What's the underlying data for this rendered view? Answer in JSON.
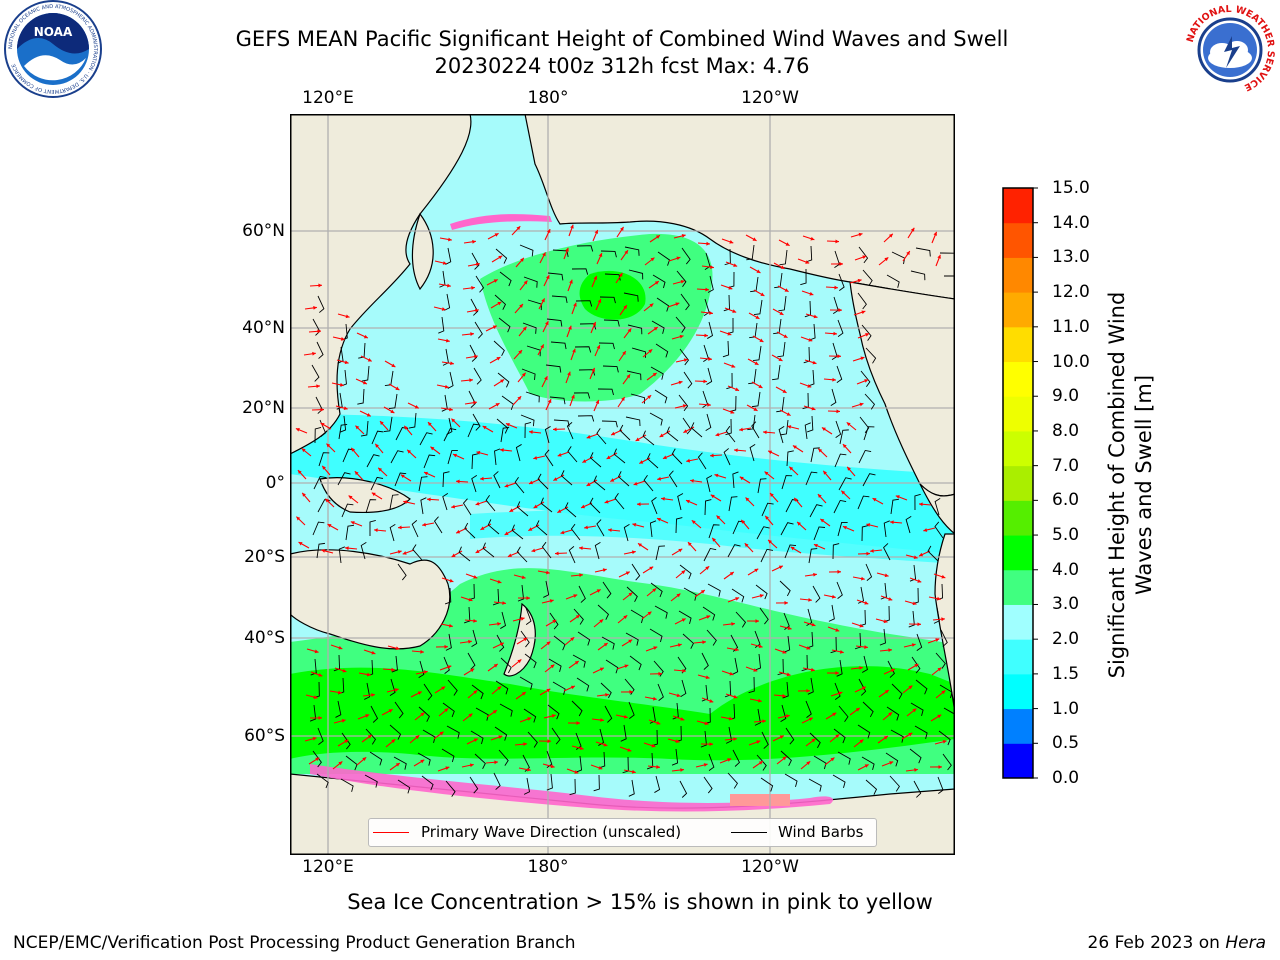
{
  "header": {
    "title": "GEFS MEAN Pacific Significant Height of Combined Wind Waves and Swell",
    "subtitle": "20230224 t00z 312h fcst   Max: 4.76"
  },
  "logos": {
    "noaa": {
      "text": "NOAA",
      "ring_text": "NATIONAL OCEANIC AND ATMOSPHERIC ADMINISTRATION · U.S. DEPARTMENT OF COMMERCE"
    },
    "nws": {
      "ring_text": "NATIONAL WEATHER SERVICE"
    }
  },
  "map": {
    "lon_labels": [
      "120°E",
      "180°",
      "120°W"
    ],
    "lat_labels": [
      "60°N",
      "40°N",
      "20°N",
      "0°",
      "20°S",
      "40°S",
      "60°S"
    ],
    "legend": {
      "wave_direction": "Primary Wave Direction (unscaled)",
      "wind_barbs": "Wind Barbs"
    },
    "colors": {
      "land": "#efecdc",
      "wave_arrow": "#ff0000",
      "barb": "#000000",
      "grid": "#b0b0b0"
    }
  },
  "colorbar": {
    "label": "Significant Height of Combined Wind Waves and Swell [m]",
    "ticks": [
      "0.0",
      "0.5",
      "1.0",
      "1.5",
      "2.0",
      "3.0",
      "4.0",
      "5.0",
      "6.0",
      "7.0",
      "8.0",
      "9.0",
      "10.0",
      "11.0",
      "12.0",
      "13.0",
      "14.0",
      "15.0"
    ],
    "colors": [
      "#0000ff",
      "#0080ff",
      "#00ffff",
      "#40ffff",
      "#a0ffff",
      "#40ff80",
      "#00ff00",
      "#55ee00",
      "#aaee00",
      "#ccff00",
      "#eeff00",
      "#ffff00",
      "#ffdd00",
      "#ffaa00",
      "#ff8800",
      "#ff5500",
      "#ff2200"
    ]
  },
  "note": "Sea Ice Concentration > 15% is shown in pink to yellow",
  "footer": {
    "left": "NCEP/EMC/Verification Post Processing Product Generation Branch",
    "right_date": "26 Feb 2023 on ",
    "right_host": "Hera"
  }
}
